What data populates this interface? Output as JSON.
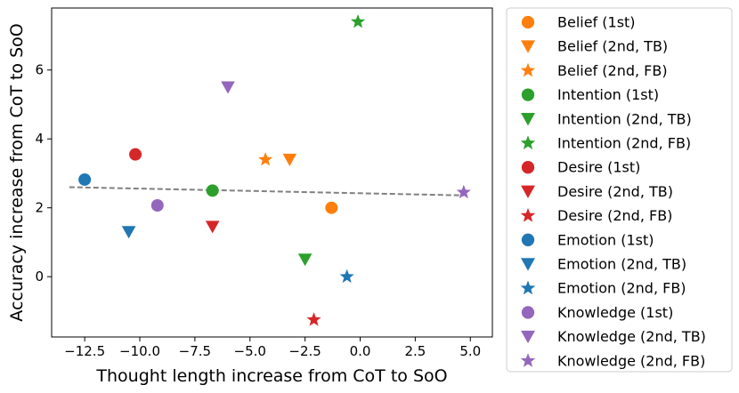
{
  "chart_data": {
    "type": "scatter",
    "xlabel": "Thought length increase from CoT to SoO",
    "ylabel": "Accuracy increase from CoT to SoO",
    "xlim": [
      -14,
      6
    ],
    "ylim": [
      -1.75,
      7.8
    ],
    "xticks": [
      -12.5,
      -10.0,
      -7.5,
      -5.0,
      -2.5,
      0.0,
      2.5,
      5.0
    ],
    "xtick_labels": [
      "−12.5",
      "−10.0",
      "−7.5",
      "−5.0",
      "−2.5",
      "0.0",
      "2.5",
      "5.0"
    ],
    "yticks": [
      0,
      2,
      4,
      6
    ],
    "ytick_labels": [
      "0",
      "2",
      "4",
      "6"
    ],
    "legend_position": "outside-right",
    "series": [
      {
        "name": "Belief (1st)",
        "color": "#ff7f0e",
        "marker": "circle",
        "x": -1.3,
        "y": 2.0
      },
      {
        "name": "Belief (2nd, TB)",
        "color": "#ff7f0e",
        "marker": "triangle-down",
        "x": -3.2,
        "y": 3.4
      },
      {
        "name": "Belief (2nd, FB)",
        "color": "#ff7f0e",
        "marker": "star",
        "x": -4.3,
        "y": 3.4
      },
      {
        "name": "Intention (1st)",
        "color": "#2ca02c",
        "marker": "circle",
        "x": -6.7,
        "y": 2.5
      },
      {
        "name": "Intention (2nd, TB)",
        "color": "#2ca02c",
        "marker": "triangle-down",
        "x": -2.5,
        "y": 0.5
      },
      {
        "name": "Intention (2nd, FB)",
        "color": "#2ca02c",
        "marker": "star",
        "x": -0.1,
        "y": 7.4
      },
      {
        "name": "Desire (1st)",
        "color": "#d62728",
        "marker": "circle",
        "x": -10.2,
        "y": 3.55
      },
      {
        "name": "Desire (2nd, TB)",
        "color": "#d62728",
        "marker": "triangle-down",
        "x": -6.7,
        "y": 1.45
      },
      {
        "name": "Desire (2nd, FB)",
        "color": "#d62728",
        "marker": "star",
        "x": -2.1,
        "y": -1.25
      },
      {
        "name": "Emotion (1st)",
        "color": "#1f77b4",
        "marker": "circle",
        "x": -12.5,
        "y": 2.82
      },
      {
        "name": "Emotion (2nd, TB)",
        "color": "#1f77b4",
        "marker": "triangle-down",
        "x": -10.5,
        "y": 1.3
      },
      {
        "name": "Emotion (2nd, FB)",
        "color": "#1f77b4",
        "marker": "star",
        "x": -0.6,
        "y": 0.0
      },
      {
        "name": "Knowledge (1st)",
        "color": "#9467bd",
        "marker": "circle",
        "x": -9.2,
        "y": 2.07
      },
      {
        "name": "Knowledge (2nd, TB)",
        "color": "#9467bd",
        "marker": "triangle-down",
        "x": -6.0,
        "y": 5.5
      },
      {
        "name": "Knowledge (2nd, FB)",
        "color": "#9467bd",
        "marker": "star",
        "x": 4.7,
        "y": 2.45
      }
    ],
    "trend_line": {
      "style": "dashed",
      "color": "#808080",
      "x": [
        -13.2,
        4.7
      ],
      "y": [
        2.6,
        2.36
      ]
    }
  }
}
